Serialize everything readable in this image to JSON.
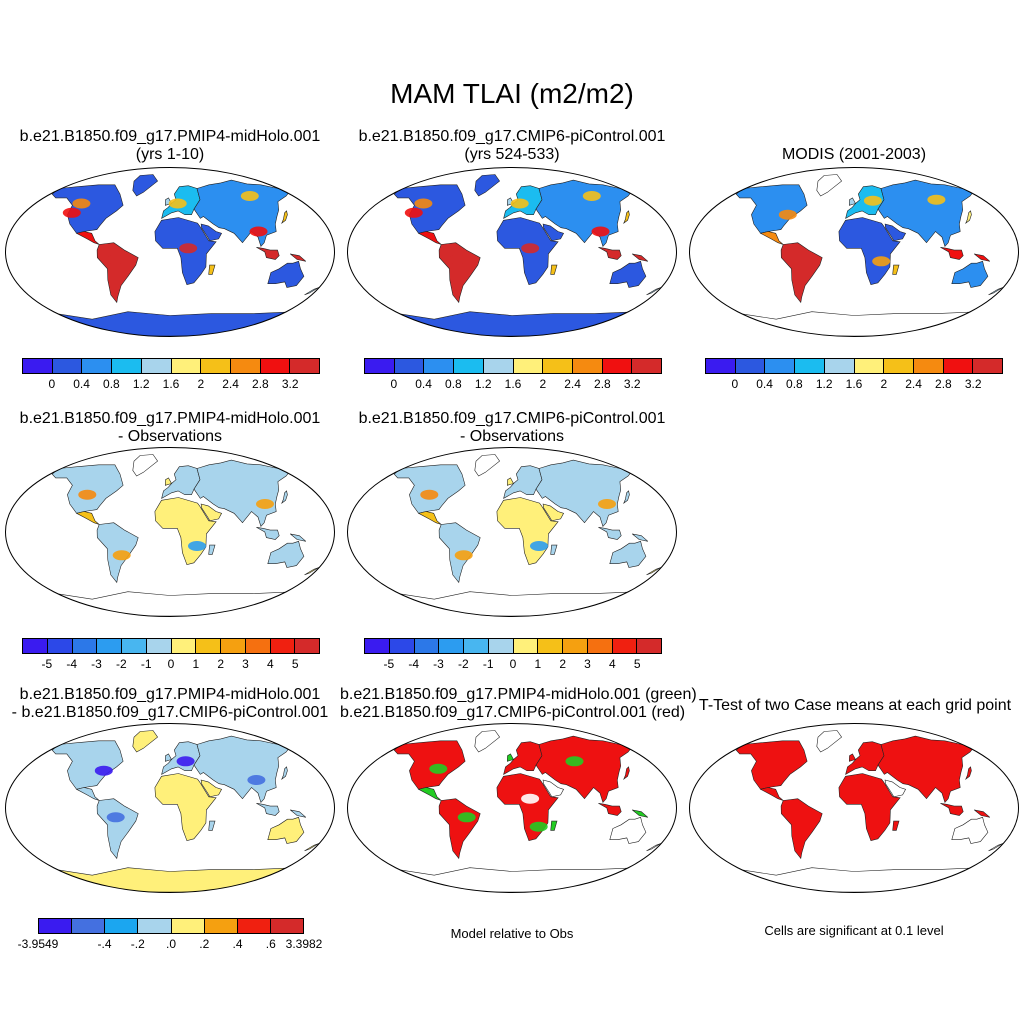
{
  "title": "MAM TLAI (m2/m2)",
  "colors": {
    "abs": [
      "#3a1bf0",
      "#2c58e0",
      "#2c8ff0",
      "#1bbcf0",
      "#a8d4ec",
      "#fff07a",
      "#f5c018",
      "#f58a10",
      "#f01010",
      "#d42a2a"
    ],
    "diff": [
      "#3a1bf0",
      "#2c48e8",
      "#2c78e8",
      "#2c9cf0",
      "#48b6f0",
      "#a8d4ec",
      "#fff07a",
      "#f5c018",
      "#f5a010",
      "#f57010",
      "#f02010",
      "#d42a2a"
    ],
    "ttest": [
      "#3a1bf0",
      "#4470e0",
      "#1ba6f0",
      "#a8d4ec",
      "#fff07a",
      "#f5a010",
      "#f02010",
      "#d42a2a"
    ]
  },
  "panels": [
    {
      "id": "p1",
      "line1": "b.e21.B1850.f09_g17.PMIP4-midHolo.001",
      "line2": "(yrs 1-10)",
      "style": "abs"
    },
    {
      "id": "p2",
      "line1": "b.e21.B1850.f09_g17.CMIP6-piControl.001",
      "line2": "(yrs 524-533)",
      "style": "abs"
    },
    {
      "id": "p3",
      "line1": "MODIS (2001-2003)",
      "line2": "",
      "style": "obs"
    },
    {
      "id": "p4",
      "line1": "b.e21.B1850.f09_g17.PMIP4-midHolo.001",
      "line2": "- Observations",
      "style": "bias"
    },
    {
      "id": "p5",
      "line1": "b.e21.B1850.f09_g17.CMIP6-piControl.001",
      "line2": "- Observations",
      "style": "bias"
    },
    {
      "id": "p6",
      "line1": "b.e21.B1850.f09_g17.PMIP4-midHolo.001",
      "line2": "- b.e21.B1850.f09_g17.CMIP6-piControl.001",
      "style": "diff"
    },
    {
      "id": "p7",
      "line1": "b.e21.B1850.f09_g17.PMIP4-midHolo.001 (green)",
      "line2": "b.e21.B1850.f09_g17.CMIP6-piControl.001 (red)",
      "style": "rg"
    },
    {
      "id": "p8",
      "line1": "T-Test of two Case means at each grid point",
      "line2": "",
      "style": "sig"
    }
  ],
  "colorbars": {
    "abs_ticks": [
      "0",
      "0.4",
      "0.8",
      "1.2",
      "1.6",
      "2",
      "2.4",
      "2.8",
      "3.2"
    ],
    "bias_ticks": [
      "-5",
      "-4",
      "-3",
      "-2",
      "-1",
      "0",
      "1",
      "2",
      "3",
      "4",
      "5"
    ],
    "diff_ticks": [
      "-3.9549",
      "-.4",
      "-.2",
      ".0",
      ".2",
      ".4",
      ".6",
      "3.3982"
    ]
  },
  "notes": {
    "model_rel": "Model relative to Obs",
    "sig": "Cells are significant at 0.1 level"
  }
}
